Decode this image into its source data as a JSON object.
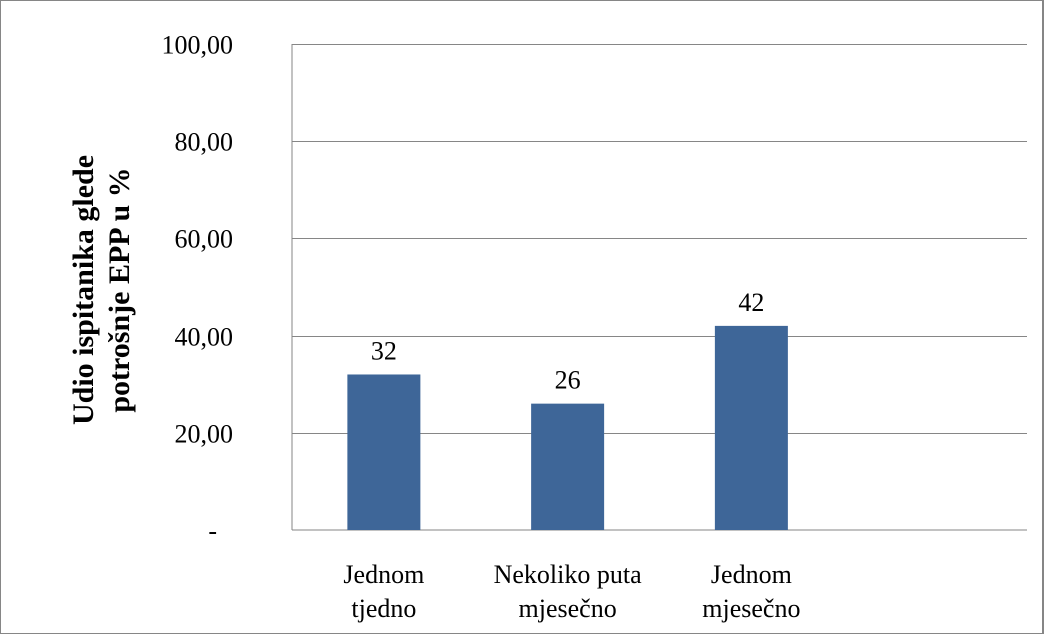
{
  "chart_data": {
    "type": "bar",
    "title": "",
    "xlabel": "",
    "ylabel": "Udio ispitanika glede potrošnje EPP u %",
    "ylabel_lines": [
      "Udio ispitanika glede",
      "potrošnje EPP u %"
    ],
    "categories": [
      [
        "Jednom",
        "tjedno"
      ],
      [
        "Nekoliko puta",
        "mjesečno"
      ],
      [
        "Jednom",
        "mjesečno"
      ]
    ],
    "values": [
      32,
      26,
      42
    ],
    "data_labels": [
      "32",
      "26",
      "42"
    ],
    "ylim": [
      0,
      100
    ],
    "yticks": [
      0,
      20,
      40,
      60,
      80,
      100
    ],
    "ytick_labels": [
      "-",
      "20,00",
      "40,00",
      "60,00",
      "80,00",
      "100,00"
    ],
    "grid": true,
    "legend": "none",
    "bar_color": "#3E6698",
    "gridline_color": "#868686",
    "empty_slots_after": 1
  }
}
